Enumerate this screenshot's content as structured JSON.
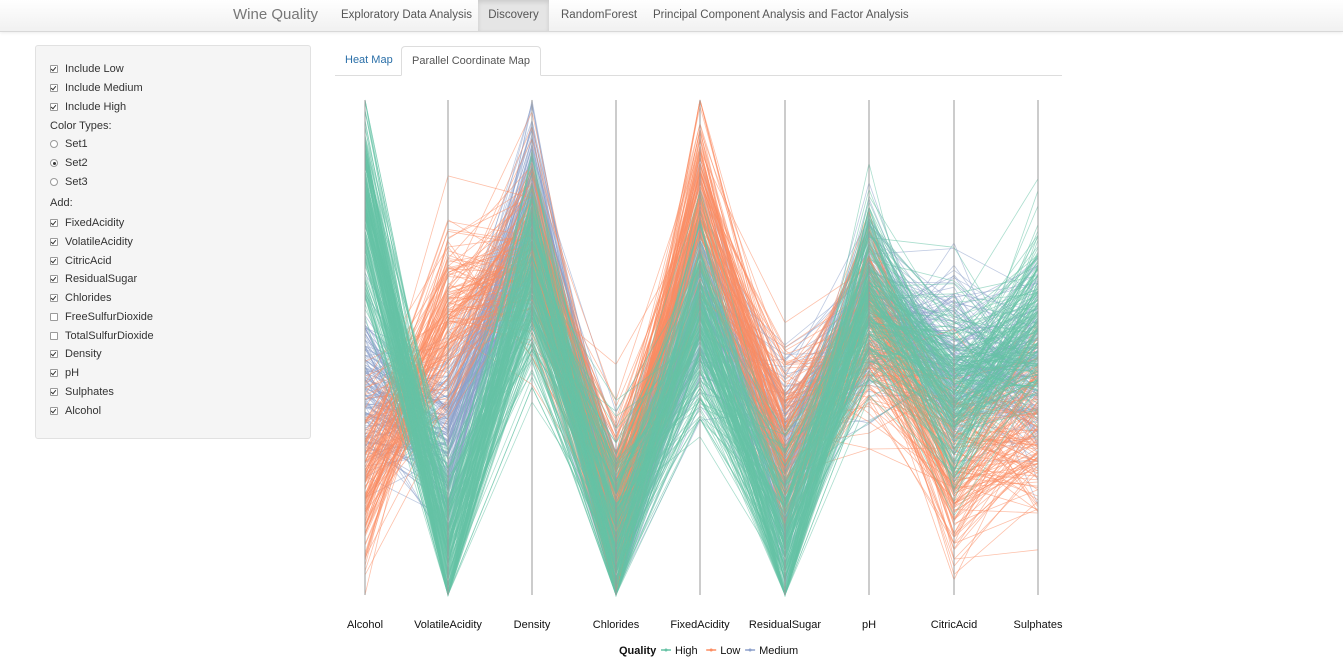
{
  "navbar": {
    "brand": "Wine Quality",
    "items": [
      {
        "label": "Exploratory Data Analysis",
        "active": false
      },
      {
        "label": "Discovery",
        "active": true
      },
      {
        "label": "RandomForest",
        "active": false
      },
      {
        "label": "Principal Component Analysis and Factor Analysis",
        "active": false
      }
    ]
  },
  "sidebar": {
    "include": [
      {
        "label": "Include Low",
        "checked": true
      },
      {
        "label": "Include Medium",
        "checked": true
      },
      {
        "label": "Include High",
        "checked": true
      }
    ],
    "color_types_label": "Color Types:",
    "color_types": [
      {
        "label": "Set1",
        "selected": false
      },
      {
        "label": "Set2",
        "selected": true
      },
      {
        "label": "Set3",
        "selected": false
      }
    ],
    "add_label": "Add:",
    "add": [
      {
        "label": "FixedAcidity",
        "checked": true
      },
      {
        "label": "VolatileAcidity",
        "checked": true
      },
      {
        "label": "CitricAcid",
        "checked": true
      },
      {
        "label": "ResidualSugar",
        "checked": true
      },
      {
        "label": "Chlorides",
        "checked": true
      },
      {
        "label": "FreeSulfurDioxide",
        "checked": false
      },
      {
        "label": "TotalSulfurDioxide",
        "checked": false
      },
      {
        "label": "Density",
        "checked": true
      },
      {
        "label": "pH",
        "checked": true
      },
      {
        "label": "Sulphates",
        "checked": true
      },
      {
        "label": "Alcohol",
        "checked": true
      }
    ]
  },
  "tabs": [
    {
      "label": "Heat Map",
      "active": false
    },
    {
      "label": "Parallel Coordinate Map",
      "active": true
    }
  ],
  "chart_data": {
    "type": "parallel-coordinates",
    "axes": [
      "Alcohol",
      "VolatileAcidity",
      "Density",
      "Chlorides",
      "FixedAcidity",
      "ResidualSugar",
      "pH",
      "CitricAcid",
      "Sulphates"
    ],
    "legend": {
      "title": "Quality",
      "placement": "bottom-center",
      "entries": [
        {
          "name": "High",
          "color": "#66c2a5"
        },
        {
          "name": "Low",
          "color": "#fc8d62"
        },
        {
          "name": "Medium",
          "color": "#8da0cb"
        }
      ]
    },
    "profiles": {
      "High": [
        0.8,
        0.1,
        0.65,
        0.12,
        0.55,
        0.1,
        0.62,
        0.4,
        0.55
      ],
      "Low": [
        0.25,
        0.55,
        0.7,
        0.18,
        0.8,
        0.3,
        0.55,
        0.25,
        0.35
      ],
      "Medium": [
        0.4,
        0.3,
        0.78,
        0.12,
        0.62,
        0.28,
        0.6,
        0.45,
        0.45
      ]
    }
  }
}
